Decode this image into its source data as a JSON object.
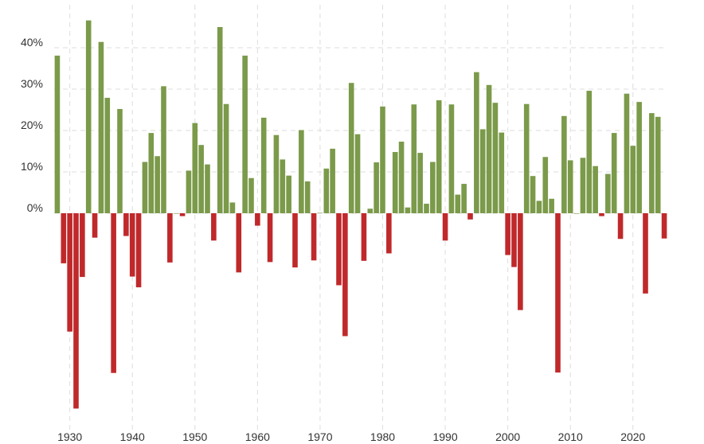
{
  "chart_data": {
    "type": "bar",
    "title": "",
    "xlabel": "",
    "ylabel": "",
    "ylim": [
      -48,
      50
    ],
    "xlim": [
      1927.5,
      2025.5
    ],
    "y_ticks": [
      0,
      10,
      20,
      30,
      40
    ],
    "y_tick_labels": [
      "0%",
      "10%",
      "20%",
      "30%",
      "40%"
    ],
    "x_ticks": [
      1930,
      1940,
      1950,
      1960,
      1970,
      1980,
      1990,
      2000,
      2010,
      2020
    ],
    "x_tick_labels": [
      "1930",
      "1940",
      "1950",
      "1960",
      "1970",
      "1980",
      "1990",
      "2000",
      "2010",
      "2020"
    ],
    "grid": true,
    "colors": {
      "positive": "#7b9a4a",
      "negative": "#c0292b",
      "grid": "#dddddd"
    },
    "series": [
      {
        "x": [
          1928,
          1929,
          1930,
          1931,
          1932,
          1933,
          1934,
          1935,
          1936,
          1937,
          1938,
          1939,
          1940,
          1941,
          1942,
          1943,
          1944,
          1945,
          1946,
          1947,
          1948,
          1949,
          1950,
          1951,
          1952,
          1953,
          1954,
          1955,
          1956,
          1957,
          1958,
          1959,
          1960,
          1961,
          1962,
          1963,
          1964,
          1965,
          1966,
          1967,
          1968,
          1969,
          1970,
          1971,
          1972,
          1973,
          1974,
          1975,
          1976,
          1977,
          1978,
          1979,
          1980,
          1981,
          1982,
          1983,
          1984,
          1985,
          1986,
          1987,
          1988,
          1989,
          1990,
          1991,
          1992,
          1993,
          1994,
          1995,
          1996,
          1997,
          1998,
          1999,
          2000,
          2001,
          2002,
          2003,
          2004,
          2005,
          2006,
          2007,
          2008,
          2009,
          2010,
          2011,
          2012,
          2013,
          2014,
          2015,
          2016,
          2017,
          2018,
          2019,
          2020,
          2021,
          2022,
          2023,
          2024,
          2025
        ],
        "values": [
          38.1,
          -12.1,
          -28.6,
          -47.2,
          -15.4,
          46.6,
          -5.9,
          41.4,
          27.9,
          -38.6,
          25.2,
          -5.5,
          -15.3,
          -17.9,
          12.4,
          19.4,
          13.8,
          30.7,
          -11.9,
          0.0,
          -0.7,
          10.3,
          21.8,
          16.5,
          11.8,
          -6.6,
          45.0,
          26.4,
          2.6,
          -14.3,
          38.1,
          8.5,
          -3.0,
          23.1,
          -11.8,
          18.9,
          13.0,
          9.1,
          -13.1,
          20.1,
          7.7,
          -11.4,
          0.1,
          10.8,
          15.6,
          -17.4,
          -29.7,
          31.5,
          19.1,
          -11.5,
          1.1,
          12.3,
          25.8,
          -9.7,
          14.8,
          17.3,
          1.4,
          26.3,
          14.6,
          2.3,
          12.4,
          27.3,
          -6.6,
          26.3,
          4.5,
          7.1,
          -1.5,
          34.1,
          20.3,
          31.0,
          26.7,
          19.5,
          -10.1,
          -13.0,
          -23.4,
          26.4,
          9.0,
          3.0,
          13.6,
          3.5,
          -38.5,
          23.5,
          12.8,
          0.0,
          13.4,
          29.6,
          11.4,
          -0.7,
          9.5,
          19.4,
          -6.2,
          28.9,
          16.3,
          26.9,
          -19.4,
          24.2,
          23.3,
          -6.1
        ]
      }
    ]
  }
}
